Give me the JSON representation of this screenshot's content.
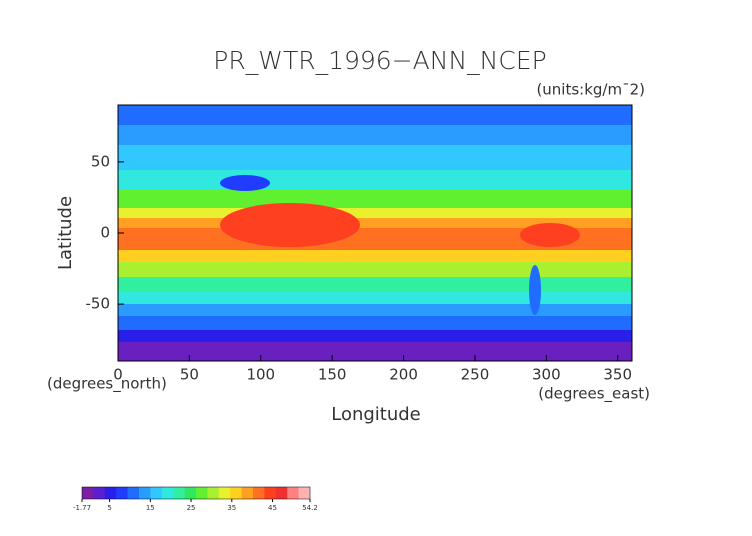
{
  "chart_data": {
    "type": "map",
    "title": "PR_WTR_1996−ANN_NCEP",
    "units": "(units:kg/m¯2)",
    "xlabel": "Longitude",
    "ylabel": "Latitude",
    "x_unit": "(degrees_east)",
    "y_unit": "(degrees_north)",
    "xlim": [
      0,
      360
    ],
    "ylim": [
      -90,
      90
    ],
    "xticks": [
      0,
      50,
      100,
      150,
      200,
      250,
      300,
      350
    ],
    "yticks": [
      -50,
      0,
      50
    ],
    "colorbar": {
      "lim": [
        -1.77,
        54.2
      ],
      "ticks": [
        -1.77,
        5,
        15,
        25,
        35,
        45,
        54.2
      ],
      "colors": [
        "#7a1fa8",
        "#5a1fd0",
        "#2a1fe8",
        "#1f3cff",
        "#1f6cff",
        "#2a9cff",
        "#30c8ff",
        "#30e8e0",
        "#30f0a0",
        "#30e860",
        "#60f030",
        "#a8f030",
        "#e8f030",
        "#ffd020",
        "#ffa020",
        "#ff7020",
        "#ff4020",
        "#f03030",
        "#ff8080",
        "#ffb0b0"
      ]
    }
  }
}
